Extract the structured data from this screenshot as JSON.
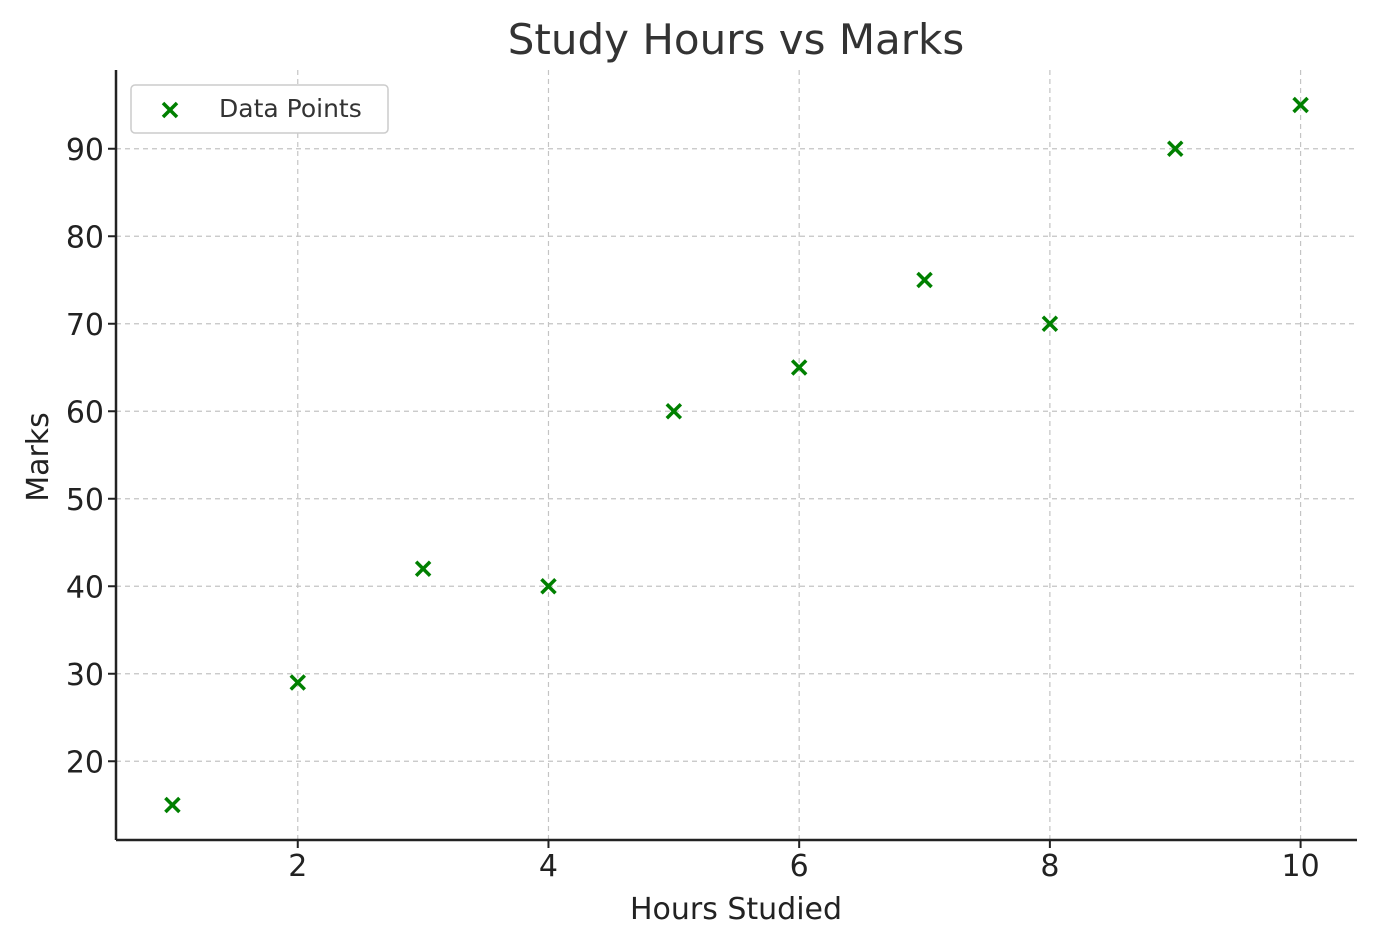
{
  "chart_data": {
    "type": "scatter",
    "title": "Study Hours vs Marks",
    "xlabel": "Hours Studied",
    "ylabel": "Marks",
    "xlim": [
      0.55,
      10.45
    ],
    "ylim": [
      11,
      99
    ],
    "xticks": [
      2,
      4,
      6,
      8,
      10
    ],
    "yticks": [
      20,
      30,
      40,
      50,
      60,
      70,
      80,
      90
    ],
    "grid": true,
    "legend_position": "top-left",
    "marker": "x",
    "color": "#008000",
    "series": [
      {
        "name": "Data Points",
        "x": [
          1,
          2,
          3,
          4,
          5,
          6,
          7,
          8,
          9,
          10
        ],
        "y": [
          15,
          29,
          42,
          40,
          60,
          65,
          75,
          70,
          90,
          95
        ]
      }
    ]
  }
}
